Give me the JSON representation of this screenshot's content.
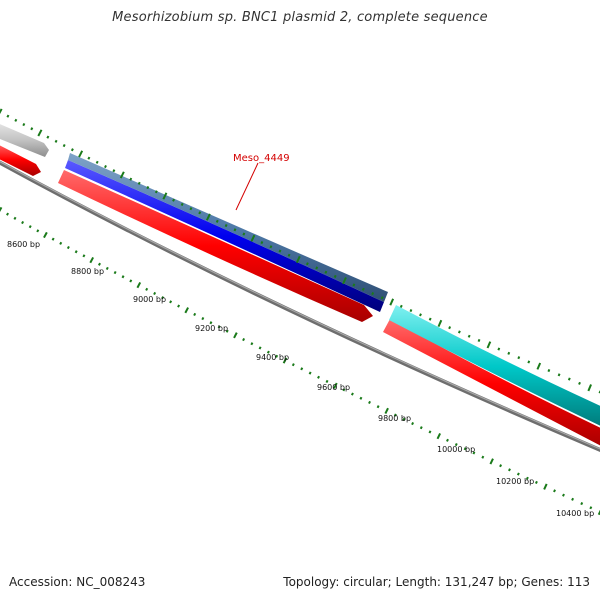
{
  "title": "Mesorhizobium sp. BNC1 plasmid 2, complete sequence",
  "accession": "Accession: NC_008243",
  "summary": "Topology: circular; Length: 131,247 bp; Genes: 113",
  "gene_label": {
    "text": "Meso_4449",
    "color": "#d40000"
  },
  "colors": {
    "backbone": "#808080",
    "forward_strand": "#ff0000",
    "reverse_strand": "#0000ee",
    "highlight": "#4f7aa8",
    "rna_or_other": "#00c8c8",
    "partial_gene": "#c8c8c8",
    "ticks": "#1a7a1a"
  },
  "scale_labels": [
    "8600 bp",
    "8800 bp",
    "9000 bp",
    "9200 bp",
    "9400 bp",
    "9600 bp",
    "9800 bp",
    "10000 bp",
    "10200 bp",
    "10400 bp"
  ]
}
